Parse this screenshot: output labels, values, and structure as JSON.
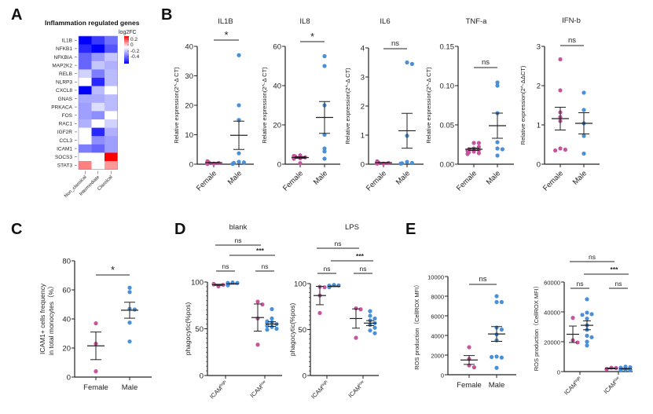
{
  "panel_labels": [
    "A",
    "B",
    "C",
    "D",
    "E"
  ],
  "colors": {
    "female": "#c8549d",
    "male": "#4a90d9",
    "axis": "#222222",
    "heat_high": "#ff0000",
    "heat_mid": "#ffffff",
    "heat_low": "#0000ff"
  },
  "chart_data": [
    {
      "id": "A",
      "type": "heatmap",
      "title": "Inflammation regulated genes",
      "legend_title": "log2FC",
      "legend_ticks": [
        "0.2",
        "0",
        "-0.2",
        "-0.4"
      ],
      "legend_range": [
        -0.45,
        0.3
      ],
      "rows": [
        "IL1B",
        "NFKB1",
        "NFKBIA",
        "MAP2K2",
        "RELB",
        "NLRP3",
        "CXCL8",
        "GNAS",
        "PRKACA",
        "FOS",
        "RAC1",
        "IGF2R",
        "CCL3",
        "ICAM1",
        "SOCS3",
        "STAT3"
      ],
      "columns": [
        "Non_classical",
        "Intermediate",
        "Classical"
      ],
      "values": [
        [
          -0.45,
          -0.35,
          -0.25
        ],
        [
          -0.38,
          -0.45,
          -0.3
        ],
        [
          -0.27,
          -0.18,
          -0.1
        ],
        [
          -0.27,
          -0.1,
          -0.14
        ],
        [
          -0.08,
          -0.23,
          -0.12
        ],
        [
          0.0,
          -0.38,
          -0.12
        ],
        [
          -0.45,
          -0.12,
          0.0
        ],
        [
          -0.15,
          -0.15,
          -0.12
        ],
        [
          -0.17,
          -0.06,
          -0.12
        ],
        [
          -0.17,
          -0.2,
          0.0
        ],
        [
          -0.14,
          0.0,
          -0.08
        ],
        [
          0.0,
          -0.38,
          -0.14
        ],
        [
          0.0,
          -0.2,
          -0.17
        ],
        [
          -0.23,
          -0.27,
          -0.17
        ],
        [
          0.0,
          0.0,
          0.3
        ],
        [
          0.15,
          0.0,
          0.12
        ]
      ]
    },
    {
      "id": "B1",
      "type": "scatter",
      "title": "IL1B",
      "ylabel": "Relative expression(2^-Δ CT)",
      "ylim": [
        0,
        40
      ],
      "yticks": [
        "0",
        "10",
        "20",
        "30",
        "40"
      ],
      "ytick_values": [
        0,
        10,
        20,
        30,
        40
      ],
      "categories": [
        "Female",
        "Male"
      ],
      "series": [
        {
          "name": "Female",
          "values": [
            0.2,
            0.4,
            0.6,
            0.8,
            1.0,
            0.5,
            0.3,
            0.1,
            0.7,
            0.4,
            0.2
          ],
          "mean": 0.5,
          "sem": 0.1
        },
        {
          "name": "Male",
          "values": [
            37,
            20,
            15,
            3.7,
            0.8,
            0.6,
            0.4,
            0.1
          ],
          "mean": 9.8,
          "sem": 4.8
        }
      ],
      "comparisons": [
        {
          "from": "Female",
          "to": "Male",
          "label": "*"
        }
      ]
    },
    {
      "id": "B2",
      "type": "scatter",
      "title": "IL8",
      "ylabel": "Relative expression(2^-Δ CT)",
      "ylim": [
        0,
        60
      ],
      "yticks": [
        "0",
        "20",
        "40",
        "60"
      ],
      "ytick_values": [
        0,
        20,
        40,
        60
      ],
      "categories": [
        "Female",
        "Male"
      ],
      "series": [
        {
          "name": "Female",
          "values": [
            0.5,
            3,
            3.5,
            4,
            4.5,
            3.8,
            3.2,
            2.8,
            3.6,
            4.2,
            3.9
          ],
          "mean": 3.4,
          "sem": 0.4
        },
        {
          "name": "Male",
          "values": [
            55,
            50,
            30,
            15,
            8,
            6.5,
            2.8
          ],
          "mean": 23.8,
          "sem": 8.1
        }
      ],
      "comparisons": [
        {
          "from": "Female",
          "to": "Male",
          "label": "*"
        }
      ]
    },
    {
      "id": "B3",
      "type": "scatter",
      "title": "IL6",
      "ylabel": "Relative expression(2^-Δ CT)",
      "ylim": [
        0,
        4
      ],
      "yticks": [
        "0",
        "1",
        "2",
        "3",
        "4"
      ],
      "ytick_values": [
        0,
        1,
        2,
        3,
        4
      ],
      "categories": [
        "Female",
        "Male"
      ],
      "series": [
        {
          "name": "Female",
          "values": [
            0.02,
            0.04,
            0.06,
            0.08,
            0.1,
            0.05,
            0.03,
            0.07,
            0.02,
            0.04,
            0.05
          ],
          "mean": 0.05,
          "sem": 0.01
        },
        {
          "name": "Male",
          "values": [
            3.5,
            3.45,
            0.98,
            0.08,
            0.04,
            0.03,
            0.02
          ],
          "mean": 1.15,
          "sem": 0.6
        }
      ],
      "comparisons": [
        {
          "from": "Female",
          "to": "Male",
          "label": "ns"
        }
      ]
    },
    {
      "id": "B4",
      "type": "scatter",
      "title": "TNF-a",
      "ylabel": "Relative expression(2^-Δ CT)",
      "ylim": [
        0,
        0.15
      ],
      "yticks": [
        "0.00",
        "0.05",
        "0.10",
        "0.15"
      ],
      "ytick_values": [
        0,
        0.05,
        0.1,
        0.15
      ],
      "categories": [
        "Female",
        "Male"
      ],
      "series": [
        {
          "name": "Female",
          "values": [
            0.027,
            0.027,
            0.02,
            0.018,
            0.016,
            0.014,
            0.015,
            0.019,
            0.022,
            0.017,
            0.013
          ],
          "mean": 0.019,
          "sem": 0.0015
        },
        {
          "name": "Male",
          "values": [
            0.104,
            0.1,
            0.065,
            0.028,
            0.02,
            0.019,
            0.011
          ],
          "mean": 0.049,
          "sem": 0.016
        }
      ],
      "comparisons": [
        {
          "from": "Female",
          "to": "Male",
          "label": "ns"
        }
      ]
    },
    {
      "id": "B5",
      "type": "scatter",
      "title": "IFN-b",
      "ylabel": "Relative expression(2^-ΔΔCT)",
      "ylim": [
        0,
        3
      ],
      "yticks": [
        "0",
        "1",
        "2",
        "3"
      ],
      "ytick_values": [
        0,
        1,
        2,
        3
      ],
      "categories": [
        "Female",
        "Male"
      ],
      "series": [
        {
          "name": "Female",
          "values": [
            2.67,
            1.88,
            1.32,
            1.2,
            1.1,
            0.4,
            0.37,
            0.35
          ],
          "mean": 1.16,
          "sem": 0.29
        },
        {
          "name": "Male",
          "values": [
            1.82,
            1.38,
            1.04,
            0.72,
            0.27
          ],
          "mean": 1.04,
          "sem": 0.27
        }
      ],
      "comparisons": [
        {
          "from": "Female",
          "to": "Male",
          "label": "ns"
        }
      ]
    },
    {
      "id": "C",
      "type": "scatter",
      "title": "",
      "ylabel": "ICAM1+ cells frequency\nin total monocytes（%）",
      "ylim": [
        0,
        80
      ],
      "yticks": [
        "0",
        "20",
        "40",
        "60",
        "80"
      ],
      "ytick_values": [
        0,
        20,
        40,
        60,
        80
      ],
      "categories": [
        "Female",
        "Male"
      ],
      "series": [
        {
          "name": "Female",
          "values": [
            37,
            23,
            4
          ],
          "mean": 21.5,
          "sem": 9.5
        },
        {
          "name": "Male",
          "values": [
            61.5,
            58.5,
            47,
            46.5,
            37.5,
            24.5
          ],
          "mean": 46,
          "sem": 5.5
        }
      ],
      "comparisons": [
        {
          "from": "Female",
          "to": "Male",
          "label": "*"
        }
      ]
    },
    {
      "id": "D1",
      "type": "scatter",
      "title": "blank",
      "ylabel": "phagocytic(%pos)",
      "ylim": [
        0,
        100
      ],
      "yticks": [
        "0",
        "50",
        "100"
      ],
      "ytick_values": [
        0,
        50,
        100
      ],
      "categories": [
        "ICAMhigh",
        "ICAMlow"
      ],
      "series": [
        {
          "name": "Female-ICAMhigh",
          "group": "ICAMhigh",
          "sex": "female",
          "values": [
            95.5,
            97,
            97.5,
            98
          ],
          "mean": 97,
          "sem": 0.6
        },
        {
          "name": "Male-ICAMhigh",
          "group": "ICAMhigh",
          "sex": "male",
          "values": [
            99.5,
            99,
            98.5,
            98,
            97.5,
            97,
            96.5,
            99,
            98,
            97.5
          ],
          "mean": 98,
          "sem": 0.3
        },
        {
          "name": "Female-ICAMlow",
          "group": "ICAMlow",
          "sex": "female",
          "values": [
            79,
            76,
            61,
            33
          ],
          "mean": 62,
          "sem": 14.5
        },
        {
          "name": "Male-ICAMlow",
          "group": "ICAMlow",
          "sex": "male",
          "values": [
            71,
            61,
            57,
            55,
            52,
            50,
            49,
            56,
            53,
            58
          ],
          "mean": 55,
          "sem": 2.5
        }
      ],
      "comparisons": [
        {
          "label": "ns",
          "level": "outer"
        },
        {
          "label": "***",
          "level": "middle"
        },
        {
          "label": "ns",
          "level": "left"
        },
        {
          "label": "ns",
          "level": "right"
        }
      ]
    },
    {
      "id": "D2",
      "type": "scatter",
      "title": "LPS",
      "ylabel": "phagocytic(%pos)",
      "ylim": [
        0,
        100
      ],
      "yticks": [
        "0",
        "50",
        "100"
      ],
      "ytick_values": [
        0,
        50,
        100
      ],
      "categories": [
        "ICAMhigh",
        "ICAMlow"
      ],
      "series": [
        {
          "name": "Female-ICAMhigh",
          "group": "ICAMhigh",
          "sex": "female",
          "values": [
            96.5,
            96,
            68,
            87
          ],
          "mean": 87,
          "sem": 10
        },
        {
          "name": "Male-ICAMhigh",
          "group": "ICAMhigh",
          "sex": "male",
          "values": [
            98.5,
            98,
            97.5,
            97,
            96.5,
            96,
            97.8,
            97.2
          ],
          "mean": 97,
          "sem": 0.3
        },
        {
          "name": "Female-ICAMlow",
          "group": "ICAMlow",
          "sex": "female",
          "values": [
            73,
            72,
            41
          ],
          "mean": 62,
          "sem": 10.5
        },
        {
          "name": "Male-ICAMlow",
          "group": "ICAMlow",
          "sex": "male",
          "values": [
            70,
            65,
            62,
            60,
            57,
            55,
            52,
            49,
            46
          ],
          "mean": 57,
          "sem": 2.7
        }
      ],
      "comparisons": [
        {
          "label": "ns",
          "level": "outer"
        },
        {
          "label": "***",
          "level": "middle"
        },
        {
          "label": "ns",
          "level": "left"
        },
        {
          "label": "ns",
          "level": "right"
        }
      ]
    },
    {
      "id": "E1",
      "type": "scatter",
      "title": "",
      "ylabel": "ROS production（CellROX MFI）",
      "ylim": [
        0,
        10000
      ],
      "yticks": [
        "0",
        "2000",
        "4000",
        "6000",
        "8000",
        "10000"
      ],
      "ytick_values": [
        0,
        2000,
        4000,
        6000,
        8000,
        10000
      ],
      "categories": [
        "Female",
        "Male"
      ],
      "series": [
        {
          "name": "Female",
          "values": [
            2800,
            1600,
            950,
            750
          ],
          "mean": 1500,
          "sem": 450
        },
        {
          "name": "Male",
          "values": [
            8000,
            7400,
            7400,
            4800,
            4600,
            4100,
            3500,
            1850,
            1750,
            1800,
            700
          ],
          "mean": 4150,
          "sem": 750
        }
      ],
      "comparisons": [
        {
          "from": "Female",
          "to": "Male",
          "label": "ns"
        }
      ]
    },
    {
      "id": "E2",
      "type": "scatter",
      "title": "",
      "ylabel": "ROS production（CellROX MFI）",
      "ylim": [
        0,
        60000
      ],
      "yticks": [
        "0",
        "20000",
        "40000",
        "60000"
      ],
      "ytick_values": [
        0,
        20000,
        40000,
        60000
      ],
      "categories": [
        "ICAMhigh",
        "ICAMlow"
      ],
      "series": [
        {
          "name": "Female-ICAMhigh",
          "group": "ICAMhigh",
          "sex": "female",
          "values": [
            36000,
            21000,
            19500
          ],
          "mean": 25000,
          "sem": 5500
        },
        {
          "name": "Male-ICAMhigh",
          "group": "ICAMhigh",
          "sex": "male",
          "values": [
            48500,
            39500,
            38500,
            38000,
            35500,
            31000,
            28000,
            24000,
            23000,
            20000,
            17500
          ],
          "mean": 31000,
          "sem": 3000
        },
        {
          "name": "Female-ICAMlow",
          "group": "ICAMlow",
          "sex": "female",
          "values": [
            2600,
            2400,
            1800,
            1500
          ],
          "mean": 2100,
          "sem": 250
        },
        {
          "name": "Male-ICAMlow",
          "group": "ICAMlow",
          "sex": "male",
          "values": [
            3300,
            2900,
            2600,
            2300,
            2000,
            1800,
            1500,
            1200,
            1000,
            800
          ],
          "mean": 1900,
          "sem": 250
        }
      ],
      "comparisons": [
        {
          "label": "ns",
          "level": "outer"
        },
        {
          "label": "***",
          "level": "middle"
        },
        {
          "label": "ns",
          "level": "left"
        },
        {
          "label": "ns",
          "level": "right"
        }
      ]
    }
  ]
}
